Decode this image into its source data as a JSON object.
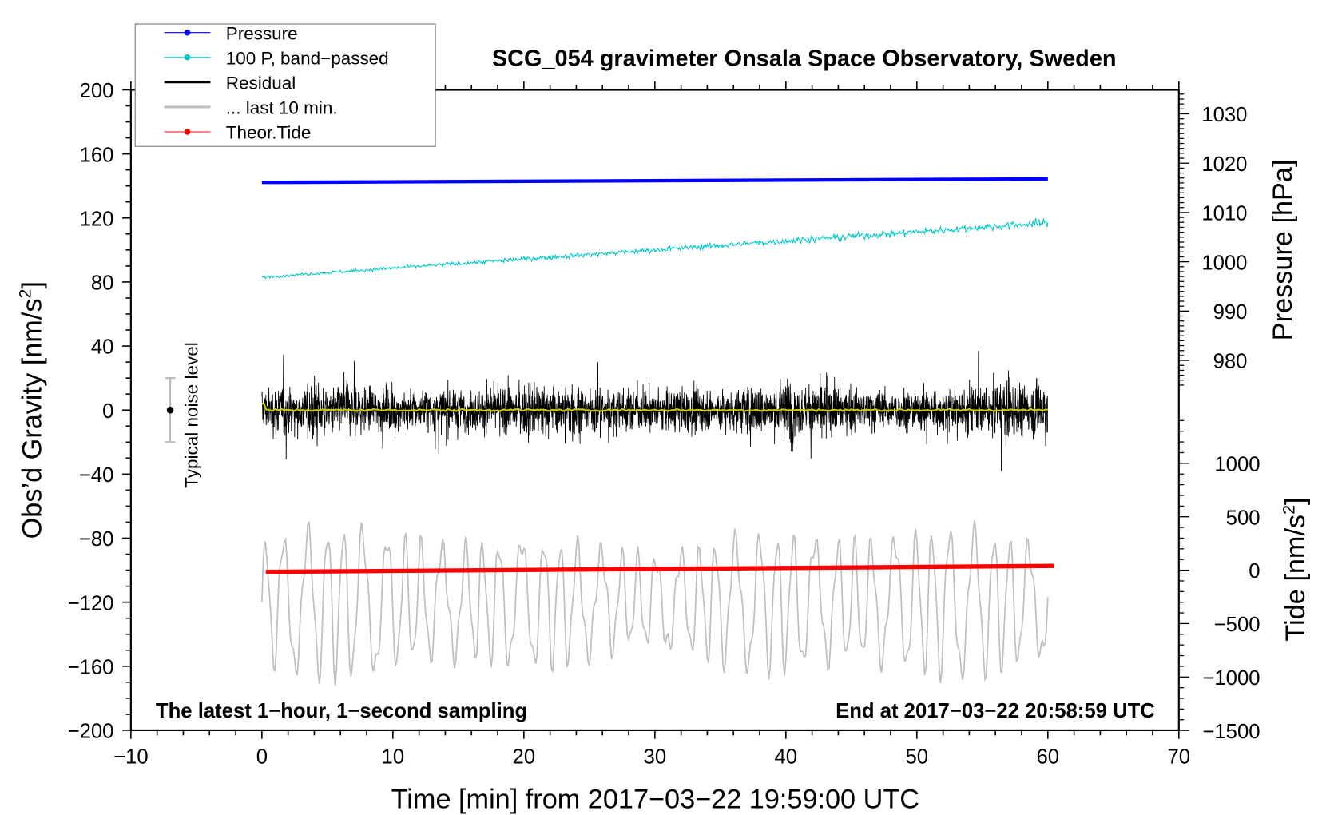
{
  "chart_data": {
    "type": "line",
    "title": "SCG_054 gravimeter Onsala Space Observatory, Sweden",
    "xlabel": "Time [min] from 2017−03−22 19:59:00 UTC",
    "ylabel_left": "Obs’d Gravity [nm/s²]",
    "ylabel_right_top": "Pressure [hPa]",
    "ylabel_right_bottom": "Tide [nm/s²]",
    "xlim": [
      -10,
      70
    ],
    "ylim_left": [
      -200,
      200
    ],
    "x_ticks": [
      "−10",
      "0",
      "10",
      "20",
      "30",
      "40",
      "50",
      "60",
      "70"
    ],
    "x_tick_values": [
      -10,
      0,
      10,
      20,
      30,
      40,
      50,
      60,
      70
    ],
    "y_left_ticks": [
      "200",
      "160",
      "120",
      "80",
      "40",
      "0",
      "−40",
      "−80",
      "−120",
      "−160",
      "−200"
    ],
    "y_left_tick_values": [
      200,
      160,
      120,
      80,
      40,
      0,
      -40,
      -80,
      -120,
      -160,
      -200
    ],
    "y_pressure_ticks": [
      "1030",
      "1020",
      "1010",
      "1000",
      "990",
      "980"
    ],
    "y_pressure_tick_values": [
      1030,
      1020,
      1010,
      1000,
      990,
      980
    ],
    "y_tide_ticks": [
      "1000",
      "500",
      "0",
      "−500",
      "−1000",
      "−1500"
    ],
    "y_tide_tick_values": [
      1000,
      500,
      0,
      -500,
      -1000,
      -1500
    ],
    "legend": {
      "placement": "top-left",
      "entries": [
        {
          "label": "Pressure",
          "color": "#0000ff",
          "marker": true
        },
        {
          "label": "100 P, band−passed",
          "color": "#00c8c8",
          "marker": true
        },
        {
          "label": "Residual",
          "color": "#000000",
          "marker": false
        },
        {
          "label": "... last 10 min.",
          "color": "#bebebe",
          "marker": false
        },
        {
          "label": "Theor.Tide",
          "color": "#ff0000",
          "marker": true
        }
      ]
    },
    "annotations": {
      "left": "The latest 1−hour, 1−second sampling",
      "right": "End at 2017−03−22 20:58:59 UTC",
      "noise": "Typical noise level"
    },
    "noise_bar": {
      "x": -7,
      "center": 0,
      "half_range": 20
    },
    "series": [
      {
        "name": "Pressure",
        "axis": "pressure",
        "unit": "hPa",
        "x_range": [
          0,
          60
        ],
        "start": 1016.1,
        "end": 1016.8,
        "color": "#0000ff"
      },
      {
        "name": "100 P, band-passed",
        "axis": "left",
        "x_range": [
          0,
          60
        ],
        "start": 83,
        "end": 117,
        "noise_amplitude": 3,
        "color": "#00c8c8"
      },
      {
        "name": "Residual",
        "axis": "left",
        "x_range": [
          0,
          60
        ],
        "mean": 0,
        "noise_amplitude": 30,
        "peak_max": 64,
        "peak_min": -60,
        "color": "#000000"
      },
      {
        "name": "Residual mean",
        "axis": "left",
        "x_range": [
          0,
          60
        ],
        "value": 0,
        "color": "#c8c800"
      },
      {
        "name": "... last 10 min.",
        "axis": "left",
        "x_range": [
          0,
          60
        ],
        "center": -120,
        "amplitude": 45,
        "color": "#bebebe"
      },
      {
        "name": "Theor.Tide",
        "axis": "tide",
        "x_range": [
          0,
          60.5
        ],
        "start": -16,
        "end": 40,
        "color": "#ff0000"
      }
    ]
  }
}
